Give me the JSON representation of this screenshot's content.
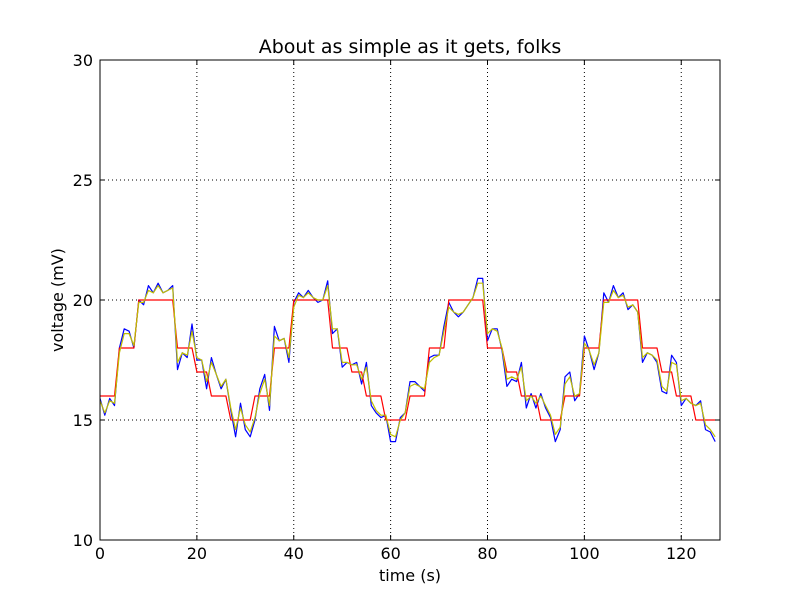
{
  "chart_data": {
    "type": "line",
    "title": "About as simple as it gets, folks",
    "xlabel": "time (s)",
    "ylabel": "voltage (mV)",
    "xlim": [
      0,
      128
    ],
    "ylim": [
      10,
      30
    ],
    "x_ticks": [
      0,
      20,
      40,
      60,
      80,
      100,
      120
    ],
    "y_ticks": [
      10,
      15,
      20,
      25,
      30
    ],
    "grid": true,
    "grid_style": "dotted",
    "series": [
      {
        "color": "#0000ff",
        "x": [
          0,
          1,
          2,
          3,
          4,
          5,
          6,
          7,
          8,
          9,
          10,
          11,
          12,
          13,
          14,
          15,
          16,
          17,
          18,
          19,
          20,
          21,
          22,
          23,
          24,
          25,
          26,
          27,
          28,
          29,
          30,
          31,
          32,
          33,
          34,
          35,
          36,
          37,
          38,
          39,
          40,
          41,
          42,
          43,
          44,
          45,
          46,
          47,
          48,
          49,
          50,
          51,
          52,
          53,
          54,
          55,
          56,
          57,
          58,
          59,
          60,
          61,
          62,
          63,
          64,
          65,
          66,
          67,
          68,
          69,
          70,
          71,
          72,
          73,
          74,
          75,
          76,
          77,
          78,
          79,
          80,
          81,
          82,
          83,
          84,
          85,
          86,
          87,
          88,
          89,
          90,
          91,
          92,
          93,
          94,
          95,
          96,
          97,
          98,
          99,
          100,
          101,
          102,
          103,
          104,
          105,
          106,
          107,
          108,
          109,
          110,
          111,
          112,
          113,
          114,
          115,
          116,
          117,
          118,
          119,
          120,
          121,
          122,
          123,
          124,
          125,
          126,
          127
        ],
        "y": [
          15.9,
          15.2,
          15.9,
          15.6,
          18.0,
          18.8,
          18.7,
          18.0,
          20.0,
          19.8,
          20.6,
          20.3,
          20.7,
          20.3,
          20.4,
          20.6,
          17.1,
          17.8,
          17.6,
          19.0,
          17.5,
          17.5,
          16.3,
          17.6,
          16.9,
          16.3,
          16.7,
          15.4,
          14.3,
          15.7,
          14.6,
          14.3,
          15.0,
          16.3,
          16.9,
          15.4,
          18.9,
          18.3,
          18.4,
          17.4,
          19.9,
          20.3,
          20.1,
          20.4,
          20.1,
          19.9,
          20.0,
          20.8,
          18.6,
          18.8,
          17.2,
          17.4,
          17.3,
          17.4,
          16.5,
          17.4,
          15.6,
          15.3,
          15.1,
          15.2,
          14.1,
          14.1,
          15.1,
          15.3,
          16.6,
          16.6,
          16.4,
          16.2,
          17.6,
          17.7,
          17.7,
          18.9,
          19.9,
          19.5,
          19.3,
          19.5,
          19.8,
          20.1,
          20.9,
          20.9,
          18.3,
          18.8,
          18.8,
          17.9,
          16.4,
          16.7,
          16.6,
          17.4,
          15.5,
          16.1,
          15.5,
          16.1,
          15.5,
          15.1,
          14.1,
          14.6,
          16.8,
          17.0,
          15.8,
          16.1,
          18.5,
          17.9,
          17.1,
          17.8,
          20.3,
          19.9,
          20.6,
          20.1,
          20.3,
          19.6,
          19.8,
          19.5,
          17.4,
          17.8,
          17.7,
          17.4,
          16.2,
          16.1,
          17.7,
          17.4,
          15.6,
          15.9,
          15.7,
          15.6,
          15.8,
          14.6,
          14.5,
          14.1
        ]
      },
      {
        "color": "#ff0000",
        "x": [
          0,
          1,
          2,
          3,
          4,
          5,
          6,
          7,
          8,
          9,
          10,
          11,
          12,
          13,
          14,
          15,
          16,
          17,
          18,
          19,
          20,
          21,
          22,
          23,
          24,
          25,
          26,
          27,
          28,
          29,
          30,
          31,
          32,
          33,
          34,
          35,
          36,
          37,
          38,
          39,
          40,
          41,
          42,
          43,
          44,
          45,
          46,
          47,
          48,
          49,
          50,
          51,
          52,
          53,
          54,
          55,
          56,
          57,
          58,
          59,
          60,
          61,
          62,
          63,
          64,
          65,
          66,
          67,
          68,
          69,
          70,
          71,
          72,
          73,
          74,
          75,
          76,
          77,
          78,
          79,
          80,
          81,
          82,
          83,
          84,
          85,
          86,
          87,
          88,
          89,
          90,
          91,
          92,
          93,
          94,
          95,
          96,
          97,
          98,
          99,
          100,
          101,
          102,
          103,
          104,
          105,
          106,
          107,
          108,
          109,
          110,
          111,
          112,
          113,
          114,
          115,
          116,
          117,
          118,
          119,
          120,
          121,
          122,
          123,
          124,
          125,
          126,
          127
        ],
        "y": [
          16,
          16,
          16,
          16,
          18,
          18,
          18,
          18,
          20,
          20,
          20,
          20,
          20,
          20,
          20,
          20,
          18,
          18,
          18,
          18,
          17,
          17,
          17,
          16,
          16,
          16,
          16,
          15,
          15,
          15,
          15,
          15,
          16,
          16,
          16,
          16,
          18,
          18,
          18,
          18,
          20,
          20,
          20,
          20,
          20,
          20,
          20,
          20,
          18,
          18,
          18,
          18,
          17,
          17,
          17,
          16,
          16,
          16,
          16,
          15,
          15,
          15,
          15,
          15,
          16,
          16,
          16,
          16,
          18,
          18,
          18,
          18,
          20,
          20,
          20,
          20,
          20,
          20,
          20,
          20,
          18,
          18,
          18,
          18,
          17,
          17,
          17,
          16,
          16,
          16,
          16,
          15,
          15,
          15,
          15,
          15,
          16,
          16,
          16,
          16,
          18,
          18,
          18,
          18,
          20,
          20,
          20,
          20,
          20,
          20,
          20,
          20,
          18,
          18,
          18,
          18,
          17,
          17,
          17,
          16,
          16,
          16,
          16,
          15,
          15,
          15,
          15,
          15
        ]
      },
      {
        "color": "#bfbf00",
        "x": [
          0,
          1,
          2,
          3,
          4,
          5,
          6,
          7,
          8,
          9,
          10,
          11,
          12,
          13,
          14,
          15,
          16,
          17,
          18,
          19,
          20,
          21,
          22,
          23,
          24,
          25,
          26,
          27,
          28,
          29,
          30,
          31,
          32,
          33,
          34,
          35,
          36,
          37,
          38,
          39,
          40,
          41,
          42,
          43,
          44,
          45,
          46,
          47,
          48,
          49,
          50,
          51,
          52,
          53,
          54,
          55,
          56,
          57,
          58,
          59,
          60,
          61,
          62,
          63,
          64,
          65,
          66,
          67,
          68,
          69,
          70,
          71,
          72,
          73,
          74,
          75,
          76,
          77,
          78,
          79,
          80,
          81,
          82,
          83,
          84,
          85,
          86,
          87,
          88,
          89,
          90,
          91,
          92,
          93,
          94,
          95,
          96,
          97,
          98,
          99,
          100,
          101,
          102,
          103,
          104,
          105,
          106,
          107,
          108,
          109,
          110,
          111,
          112,
          113,
          114,
          115,
          116,
          117,
          118,
          119,
          120,
          121,
          122,
          123,
          124,
          125,
          126,
          127
        ],
        "y": [
          15.8,
          15.3,
          15.8,
          15.7,
          17.8,
          18.6,
          18.6,
          18.1,
          19.9,
          19.9,
          20.4,
          20.3,
          20.6,
          20.3,
          20.4,
          20.5,
          17.4,
          17.8,
          17.7,
          18.7,
          17.6,
          17.5,
          16.6,
          17.4,
          16.9,
          16.4,
          16.7,
          15.5,
          14.6,
          15.5,
          14.8,
          14.5,
          15.1,
          16.1,
          16.7,
          15.6,
          18.5,
          18.3,
          18.4,
          17.6,
          19.7,
          20.2,
          20.1,
          20.3,
          20.1,
          20.0,
          20.0,
          20.6,
          18.8,
          18.8,
          17.4,
          17.4,
          17.3,
          17.3,
          16.7,
          17.2,
          15.8,
          15.4,
          15.2,
          15.2,
          14.4,
          14.3,
          15.0,
          15.3,
          16.4,
          16.5,
          16.4,
          16.3,
          17.4,
          17.6,
          17.7,
          18.7,
          19.7,
          19.5,
          19.4,
          19.5,
          19.8,
          20.1,
          20.7,
          20.7,
          18.6,
          18.8,
          18.7,
          18.0,
          16.7,
          16.8,
          16.7,
          17.2,
          15.8,
          16.0,
          15.7,
          16.0,
          15.6,
          15.2,
          14.4,
          14.7,
          16.5,
          16.8,
          16.0,
          16.1,
          18.2,
          17.9,
          17.3,
          17.8,
          19.9,
          19.9,
          20.4,
          20.1,
          20.2,
          19.7,
          19.8,
          19.5,
          17.6,
          17.8,
          17.7,
          17.5,
          16.4,
          16.2,
          17.4,
          17.3,
          15.8,
          15.9,
          15.7,
          15.6,
          15.7,
          14.8,
          14.6,
          14.3
        ]
      }
    ]
  }
}
